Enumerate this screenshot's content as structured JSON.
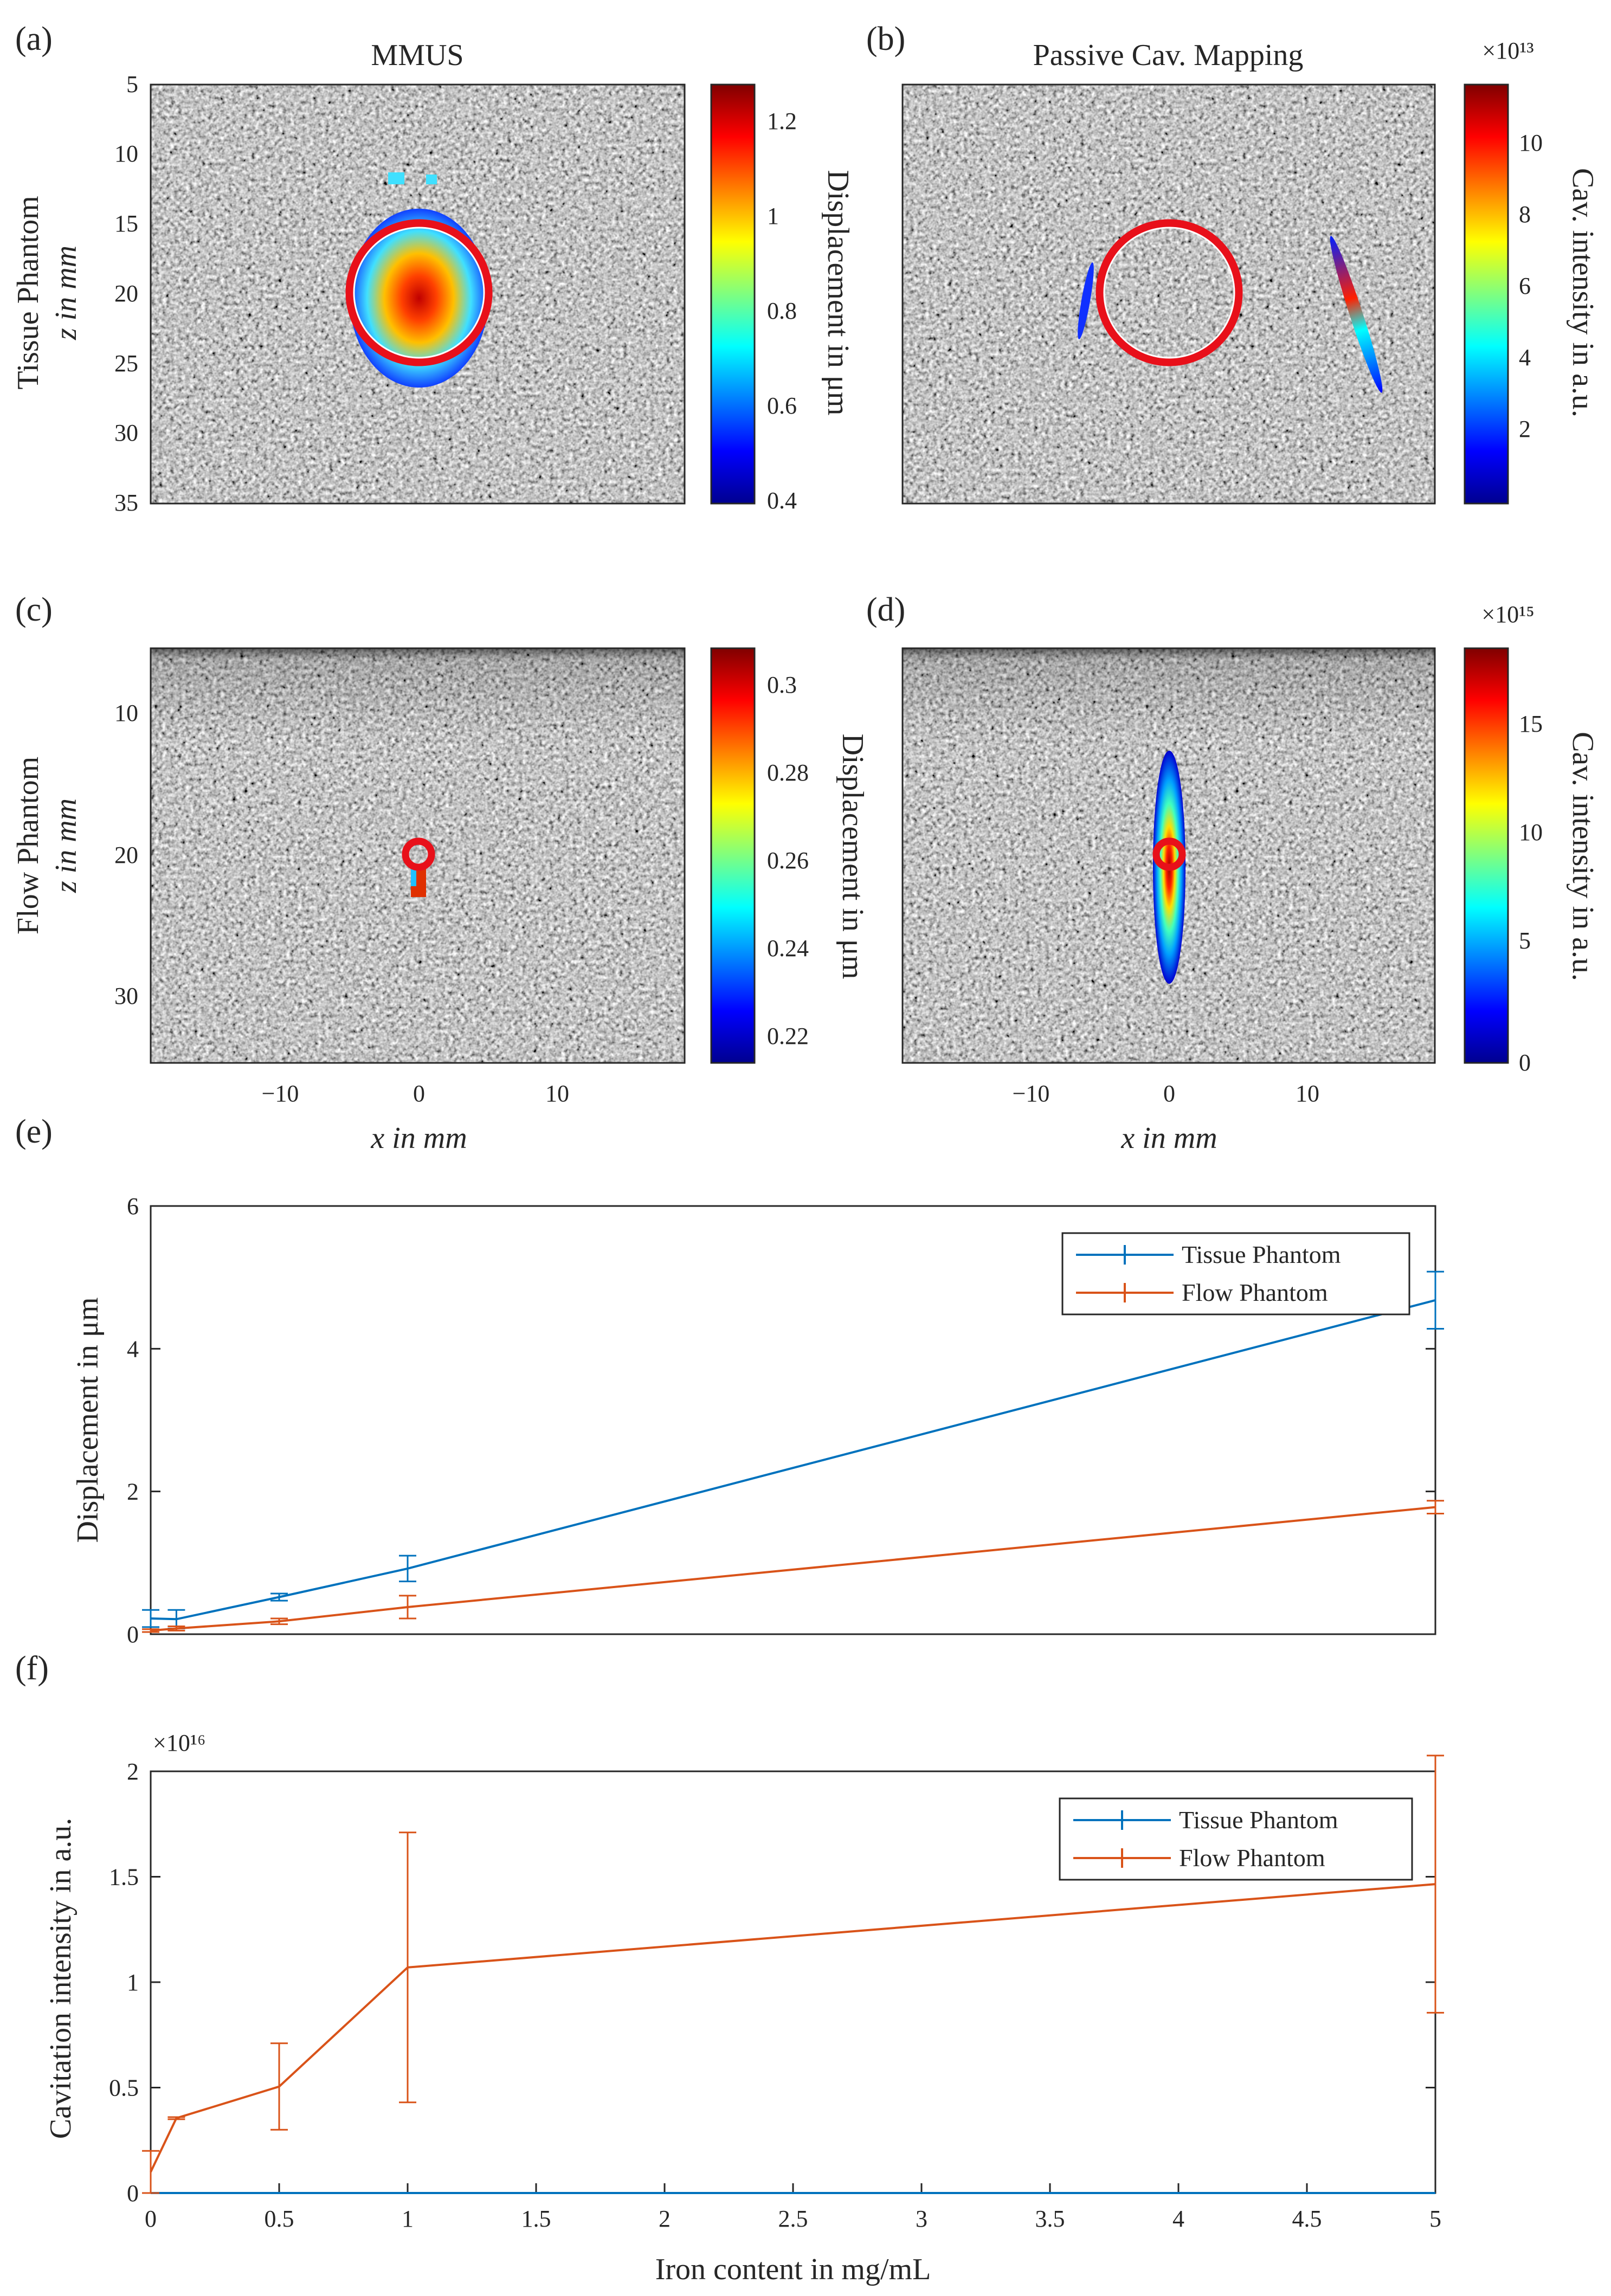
{
  "panel_labels": [
    "(a)",
    "(b)",
    "(c)",
    "(d)",
    "(e)",
    "(f)"
  ],
  "top_titles": {
    "mmus": "MMUS",
    "pcm": "Passive Cav. Mapping"
  },
  "row_labels": {
    "tissue_title": "Tissue Phantom",
    "tissue_axis": "z in mm",
    "flow_title": "Flow Phantom",
    "flow_axis": "z in mm"
  },
  "x_axis_label_images": "x in mm",
  "image_x_ticks": [
    "−10",
    "0",
    "10"
  ],
  "tissue_z_ticks": [
    "5",
    "10",
    "15",
    "20",
    "25",
    "30",
    "35"
  ],
  "flow_z_ticks": [
    "10",
    "20",
    "30"
  ],
  "colorbars": {
    "a": {
      "label": "Displacement in μm",
      "ticks": [
        "1.2",
        "1",
        "0.8",
        "0.6",
        "0.4"
      ],
      "exponent": ""
    },
    "b": {
      "label": "Cav. intensity in a.u.",
      "ticks": [
        "10",
        "8",
        "6",
        "4",
        "2"
      ],
      "exponent": "×10¹³"
    },
    "c": {
      "label": "Displacement in μm",
      "ticks": [
        "0.3",
        "0.28",
        "0.26",
        "0.24",
        "0.22"
      ],
      "exponent": ""
    },
    "d": {
      "label": "Cav. intensity in a.u.",
      "ticks": [
        "15",
        "10",
        "5",
        "0"
      ],
      "exponent": "×10¹⁵"
    }
  },
  "legend": [
    "Tissue Phantom",
    "Flow Phantom"
  ],
  "colors": {
    "tissue": "#0072BD",
    "flow": "#D95319",
    "ring": "#E8101A",
    "ultrasound_bg": "#8c8c8c",
    "axis": "#262626"
  },
  "chart_data": [
    {
      "type": "line",
      "title": "",
      "xlabel": "",
      "ylabel": "Displacement in μm",
      "xlim": [
        0,
        5
      ],
      "ylim": [
        0,
        6
      ],
      "x": [
        0,
        0.1,
        0.5,
        1,
        5
      ],
      "y_tick_labels": [
        "0",
        "2",
        "4",
        "6"
      ],
      "series": [
        {
          "name": "Tissue Phantom",
          "values": [
            0.22,
            0.21,
            0.52,
            0.92,
            4.68
          ],
          "errors": [
            0.12,
            0.13,
            0.05,
            0.18,
            0.4
          ]
        },
        {
          "name": "Flow Phantom",
          "values": [
            0.05,
            0.08,
            0.18,
            0.38,
            1.78
          ],
          "errors": [
            0.02,
            0.03,
            0.04,
            0.16,
            0.09
          ]
        }
      ],
      "legend_position": "top-right"
    },
    {
      "type": "line",
      "title": "",
      "xlabel": "Iron content in mg/mL",
      "ylabel": "Cavitation intensity in a.u.",
      "exponent": "×10¹⁶",
      "xlim": [
        0,
        5
      ],
      "ylim": [
        0,
        2
      ],
      "x": [
        0,
        0.1,
        0.5,
        1,
        5
      ],
      "x_tick_labels": [
        "0",
        "0.5",
        "1",
        "1.5",
        "2",
        "2.5",
        "3",
        "3.5",
        "4",
        "4.5",
        "5"
      ],
      "y_tick_labels": [
        "0",
        "0.5",
        "1",
        "1.5",
        "2"
      ],
      "series": [
        {
          "name": "Tissue Phantom",
          "values": [
            0,
            0,
            0,
            0,
            0
          ],
          "errors": [
            0,
            0,
            0,
            0,
            0
          ]
        },
        {
          "name": "Flow Phantom",
          "values": [
            0.1,
            0.355,
            0.505,
            1.07,
            1.465
          ],
          "errors": [
            0.1,
            0.005,
            0.205,
            0.64,
            0.61
          ]
        }
      ],
      "legend_position": "top-right"
    }
  ]
}
